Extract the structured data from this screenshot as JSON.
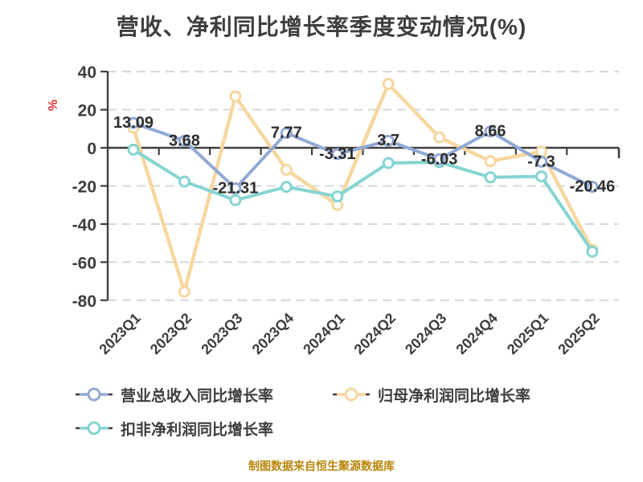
{
  "page": {
    "background": "#ffffff"
  },
  "colors": {
    "title": "#3e3e3e",
    "axis": "#3f3f3f",
    "tick_label": "#3d3d3d",
    "grid": "#d9d9d9",
    "data_label": "#2d2d2d",
    "unit_label": "#e03131",
    "legend_text": "#3d3d3d",
    "source": "#b8860b"
  },
  "chart_data": {
    "type": "line",
    "title": "营收、净利同比增长率季度变动情况(%)",
    "unit_label": "%",
    "xlabel": "",
    "ylabel": "%",
    "categories": [
      "2023Q1",
      "2023Q2",
      "2023Q3",
      "2023Q4",
      "2024Q1",
      "2024Q2",
      "2024Q3",
      "2024Q4",
      "2025Q1",
      "2025Q2"
    ],
    "ylim": [
      -80,
      40
    ],
    "yticks": [
      40,
      20,
      0,
      -20,
      -40,
      -60,
      -80
    ],
    "grid": "horizontal-dashed",
    "legend_position": "bottom-left",
    "series": [
      {
        "name": "营业总收入同比增长率",
        "color": "#92a9d5",
        "marker": "circle-white-fill",
        "values": [
          13.09,
          3.68,
          -21.31,
          7.77,
          -3.31,
          3.7,
          -6.03,
          8.66,
          -7.3,
          -20.46
        ],
        "point_labels": [
          "13.09",
          "3.68",
          "-21.31",
          "7.77",
          "-3.31",
          "3.7",
          "-6.03",
          "8.66",
          "-7.3",
          "-20.46"
        ]
      },
      {
        "name": "归母净利润同比增长率",
        "color": "#f6d7a0",
        "marker": "circle-white-fill",
        "values": [
          10.5,
          -75.5,
          27,
          -11.5,
          -30,
          33.5,
          5.5,
          -7,
          -2,
          -53.5
        ]
      },
      {
        "name": "扣非净利润同比增长率",
        "color": "#85d4d2",
        "marker": "circle-white-fill",
        "values": [
          -1,
          -17.7,
          -27.5,
          -20.5,
          -25.5,
          -8,
          -7.5,
          -15.5,
          -15,
          -54.5
        ]
      }
    ],
    "source_note": "制图数据来自恒生聚源数据库"
  }
}
